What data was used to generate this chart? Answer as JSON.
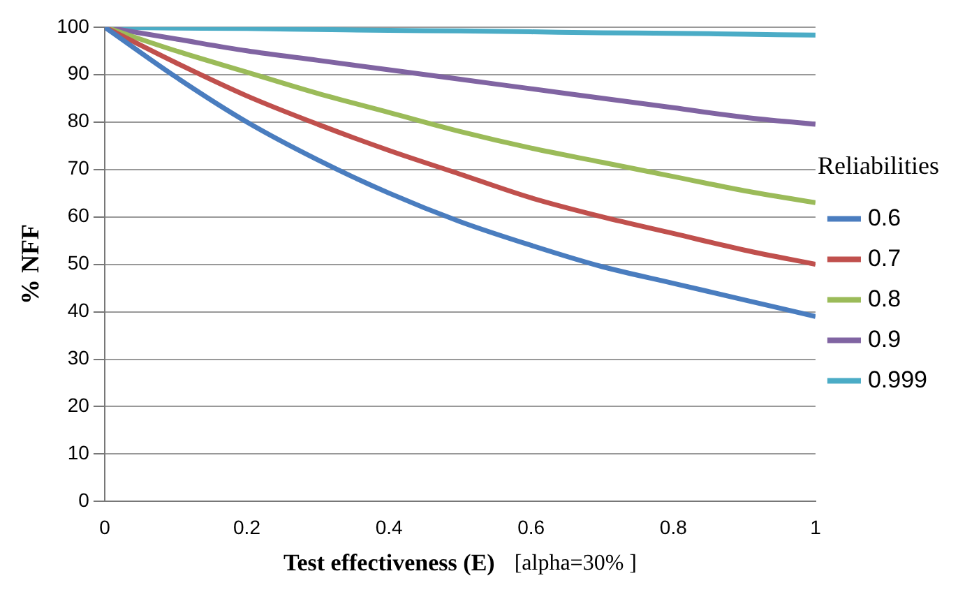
{
  "chart_data": {
    "type": "line",
    "xlabel": "Test effectiveness (E)",
    "ylabel": "% NFF",
    "legend_title": "Reliabilities",
    "annotations": [
      "[alpha=30% ]"
    ],
    "x": [
      0,
      0.1,
      0.2,
      0.3,
      0.4,
      0.5,
      0.6,
      0.7,
      0.8,
      0.9,
      1
    ],
    "series": [
      {
        "name": "0.6",
        "color": "#4a7dbf",
        "values": [
          100,
          89.5,
          80,
          72,
          65,
          59,
          54,
          49.5,
          46,
          42.5,
          39
        ]
      },
      {
        "name": "0.7",
        "color": "#c0504d",
        "values": [
          100,
          92.5,
          85.5,
          79.5,
          74,
          69,
          64,
          60,
          56.5,
          53,
          50
        ]
      },
      {
        "name": "0.8",
        "color": "#9bbb59",
        "values": [
          100,
          95,
          90.5,
          86,
          82,
          78,
          74.5,
          71.5,
          68.5,
          65.5,
          63
        ]
      },
      {
        "name": "0.9",
        "color": "#8064a2",
        "values": [
          100,
          97.5,
          95,
          93,
          91,
          89,
          87,
          85,
          83,
          81,
          79.5
        ]
      },
      {
        "name": "0.999",
        "color": "#4bacc6",
        "values": [
          100,
          99.8,
          99.7,
          99.5,
          99.3,
          99.2,
          99,
          98.8,
          98.7,
          98.5,
          98.3
        ]
      }
    ],
    "xlim": [
      0,
      1
    ],
    "xticks": [
      0,
      0.2,
      0.4,
      0.6,
      0.8,
      1
    ],
    "ylim": [
      0,
      100
    ],
    "yticks": [
      0,
      10,
      20,
      30,
      40,
      50,
      60,
      70,
      80,
      90,
      100
    ],
    "grid": "y",
    "legend": "right",
    "marker": "none",
    "line_style": "solid"
  }
}
